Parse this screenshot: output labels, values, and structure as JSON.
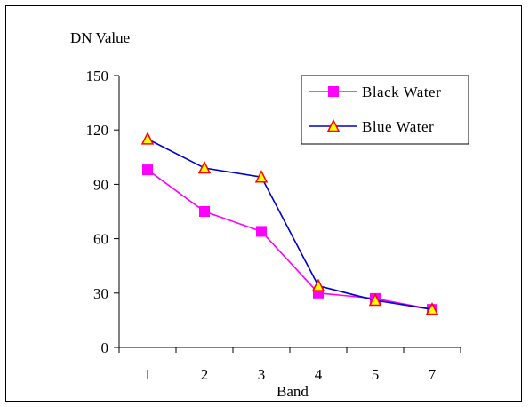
{
  "chart_data": {
    "type": "line",
    "title": "",
    "ylabel": "DN Value",
    "xlabel": "Band",
    "categories": [
      "1",
      "2",
      "3",
      "4",
      "5",
      "7"
    ],
    "ylim": [
      0,
      150
    ],
    "yticks": [
      "0",
      "30",
      "60",
      "90",
      "120",
      "150"
    ],
    "grid": false,
    "legend_position": "top-right",
    "series": [
      {
        "name": "Black Water",
        "values": [
          98,
          75,
          64,
          30,
          27,
          21
        ],
        "color": "#ff00ff",
        "marker": "square"
      },
      {
        "name": "Blue Water",
        "values": [
          115,
          99,
          94,
          34,
          26,
          21
        ],
        "color": "#0000cc",
        "marker": "triangle",
        "marker_fill": "#ffff00",
        "marker_edge": "#ff0000"
      }
    ]
  }
}
